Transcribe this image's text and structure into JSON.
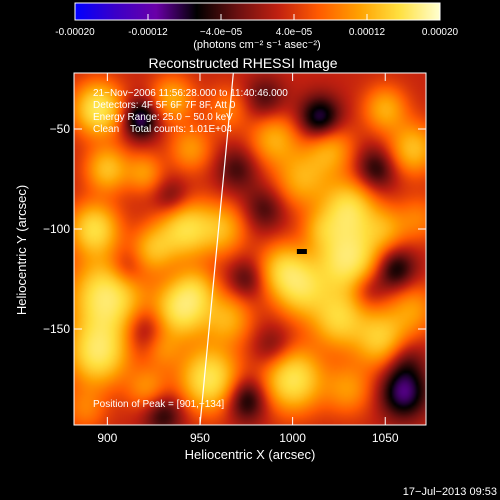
{
  "colorbar": {
    "ticks": [
      "-0.00020",
      "-0.00012",
      "−4.0e−05",
      "4.0e−05",
      "0.00012",
      "0.00020"
    ],
    "tick_values": [
      -0.0002,
      -0.00012,
      -4e-05,
      4e-05,
      0.00012,
      0.0002
    ],
    "range": [
      -0.0002,
      0.0002
    ],
    "unit_label": "(photons cm⁻² s⁻¹ asec⁻²)",
    "colormap": [
      "#0000ff",
      "#3b00c8",
      "#6a00a8",
      "#000000",
      "#6a1010",
      "#c02010",
      "#ff5a00",
      "#ffa000",
      "#ffe040",
      "#ffffd0"
    ]
  },
  "chart_data": {
    "type": "heatmap",
    "title": "Reconstructed RHESSI Image",
    "xlabel": "Heliocentric X (arcsec)",
    "ylabel": "Heliocentric Y (arcsec)",
    "xlim": [
      882,
      1072
    ],
    "ylim": [
      -198,
      -22
    ],
    "xticks": [
      900,
      950,
      1000,
      1050
    ],
    "yticks": [
      -50,
      -100,
      -150
    ],
    "annotations": [
      "21−Nov−2006 11:56:28.000 to 11:40:46.000",
      "Detectors: 4F 5F 6F 7F 8F, Att 0",
      "Energy Range: 25.0 − 50.0 keV",
      "Clean    Total counts: 1.01E+04",
      "Position of Peak = [901,−134]"
    ],
    "peak": {
      "x": 901,
      "y": -134
    },
    "limb_line": [
      {
        "x": 968,
        "y": -22
      },
      {
        "x": 950,
        "y": -198
      }
    ],
    "marker": {
      "x": 1005,
      "y": -111
    },
    "blobs": [
      {
        "x": 895,
        "y": -40,
        "v": 0.9,
        "s": 9
      },
      {
        "x": 900,
        "y": -70,
        "v": 0.6,
        "s": 8
      },
      {
        "x": 893,
        "y": -100,
        "v": 0.8,
        "s": 9
      },
      {
        "x": 900,
        "y": -134,
        "v": 1.0,
        "s": 13
      },
      {
        "x": 895,
        "y": -162,
        "v": 0.9,
        "s": 11
      },
      {
        "x": 888,
        "y": -190,
        "v": 0.3,
        "s": 8
      },
      {
        "x": 918,
        "y": -45,
        "v": -0.6,
        "s": 7
      },
      {
        "x": 920,
        "y": -72,
        "v": 0.4,
        "s": 7
      },
      {
        "x": 925,
        "y": -110,
        "v": 0.5,
        "s": 8
      },
      {
        "x": 920,
        "y": -150,
        "v": -0.3,
        "s": 8
      },
      {
        "x": 922,
        "y": -180,
        "v": 0.4,
        "s": 8
      },
      {
        "x": 935,
        "y": -35,
        "v": 0.5,
        "s": 8
      },
      {
        "x": 945,
        "y": -60,
        "v": 0.4,
        "s": 8
      },
      {
        "x": 935,
        "y": -85,
        "v": -0.3,
        "s": 7
      },
      {
        "x": 942,
        "y": -100,
        "v": 0.8,
        "s": 10
      },
      {
        "x": 948,
        "y": -130,
        "v": 0.4,
        "s": 8
      },
      {
        "x": 940,
        "y": -140,
        "v": 0.9,
        "s": 10
      },
      {
        "x": 955,
        "y": -175,
        "v": 0.9,
        "s": 11
      },
      {
        "x": 930,
        "y": -192,
        "v": -0.4,
        "s": 8
      },
      {
        "x": 965,
        "y": -40,
        "v": 0.3,
        "s": 8
      },
      {
        "x": 970,
        "y": -70,
        "v": -0.3,
        "s": 8
      },
      {
        "x": 962,
        "y": -100,
        "v": 0.5,
        "s": 9
      },
      {
        "x": 965,
        "y": -145,
        "v": 0.5,
        "s": 9
      },
      {
        "x": 975,
        "y": -185,
        "v": -0.5,
        "s": 8
      },
      {
        "x": 985,
        "y": -35,
        "v": -0.3,
        "s": 8
      },
      {
        "x": 990,
        "y": -55,
        "v": 0.5,
        "s": 9
      },
      {
        "x": 985,
        "y": -90,
        "v": -0.3,
        "s": 8
      },
      {
        "x": 1005,
        "y": -75,
        "v": 0.5,
        "s": 10
      },
      {
        "x": 995,
        "y": -120,
        "v": 0.6,
        "s": 9
      },
      {
        "x": 1005,
        "y": -130,
        "v": 0.7,
        "s": 10
      },
      {
        "x": 990,
        "y": -160,
        "v": -0.3,
        "s": 8
      },
      {
        "x": 1000,
        "y": -175,
        "v": 0.9,
        "s": 11
      },
      {
        "x": 1015,
        "y": -45,
        "v": -0.6,
        "s": 8
      },
      {
        "x": 1020,
        "y": -60,
        "v": 0.5,
        "s": 9
      },
      {
        "x": 1030,
        "y": -90,
        "v": 0.8,
        "s": 10
      },
      {
        "x": 1030,
        "y": -115,
        "v": 1.0,
        "s": 12
      },
      {
        "x": 1025,
        "y": -145,
        "v": 0.7,
        "s": 10
      },
      {
        "x": 1030,
        "y": -180,
        "v": 0.4,
        "s": 9
      },
      {
        "x": 1050,
        "y": -40,
        "v": 0.5,
        "s": 8
      },
      {
        "x": 1045,
        "y": -70,
        "v": -0.4,
        "s": 8
      },
      {
        "x": 1050,
        "y": -100,
        "v": 0.4,
        "s": 8
      },
      {
        "x": 1055,
        "y": -120,
        "v": -0.5,
        "s": 8
      },
      {
        "x": 1048,
        "y": -155,
        "v": 0.7,
        "s": 10
      },
      {
        "x": 1060,
        "y": -182,
        "v": -0.6,
        "s": 9
      },
      {
        "x": 1065,
        "y": -60,
        "v": 0.6,
        "s": 9
      },
      {
        "x": 1068,
        "y": -95,
        "v": 0.3,
        "s": 8
      },
      {
        "x": 1065,
        "y": -140,
        "v": 0.4,
        "s": 9
      },
      {
        "x": 1060,
        "y": -165,
        "v": -0.3,
        "s": 8
      },
      {
        "x": 910,
        "y": -120,
        "v": -0.3,
        "s": 7
      },
      {
        "x": 930,
        "y": -160,
        "v": 0.3,
        "s": 7
      },
      {
        "x": 975,
        "y": -125,
        "v": -0.3,
        "s": 7
      },
      {
        "x": 1015,
        "y": -100,
        "v": 0.3,
        "s": 7
      },
      {
        "x": 1040,
        "y": -130,
        "v": -0.3,
        "s": 7
      }
    ],
    "background_level": 0.12
  },
  "footer": {
    "timestamp": "17−Jul−2013 09:53"
  }
}
